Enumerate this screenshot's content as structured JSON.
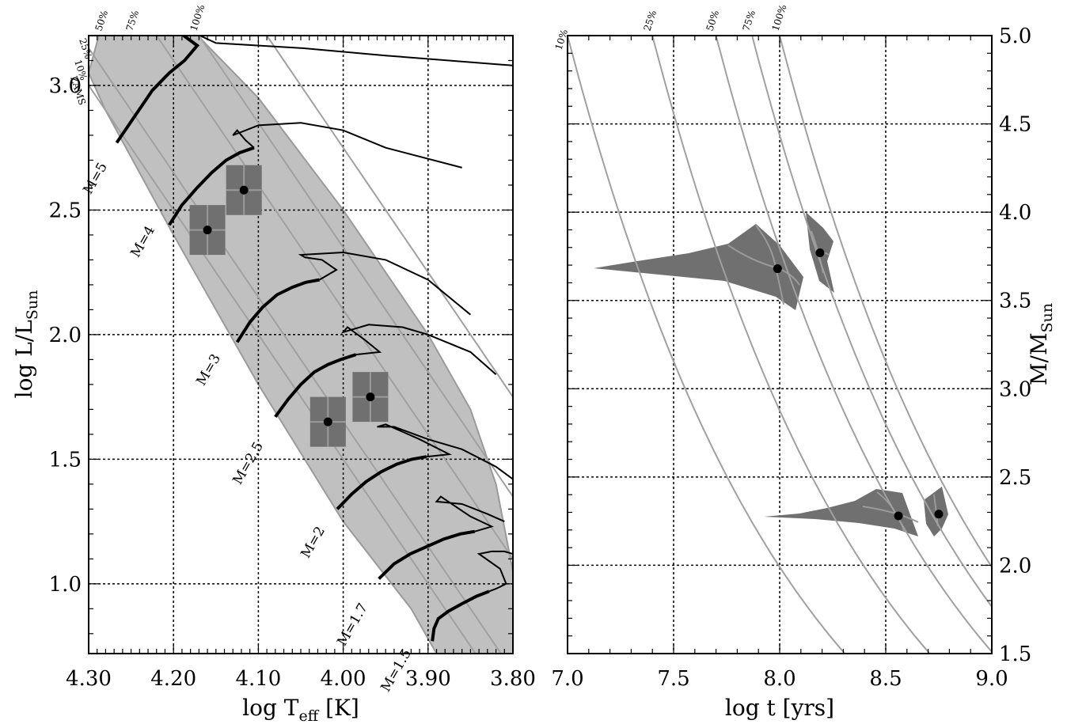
{
  "chart_data": [
    {
      "type": "line",
      "panel": "hr-diagram",
      "xlabel": "log T",
      "xlabel_sub": "eff",
      "xlabel_unit": " [K]",
      "ylabel": "log L/L",
      "ylabel_sub": "Sun",
      "xlim": [
        4.3,
        3.8
      ],
      "ylim": [
        0.72,
        3.2
      ],
      "x_ticks": [
        "4.30",
        "4.20",
        "4.10",
        "4.00",
        "3.90",
        "3.80"
      ],
      "y_ticks": [
        "1.0",
        "1.5",
        "2.0",
        "2.5",
        "3.0"
      ],
      "grid": true,
      "top_labels": [
        "50%",
        "75%",
        "100%"
      ],
      "corner_labels": [
        "25%",
        "10%",
        "ZAMS"
      ],
      "tracks": [
        {
          "label": "M=5",
          "points": [
            [
              4.267,
              2.77
            ],
            [
              4.245,
              2.88
            ],
            [
              4.225,
              2.98
            ],
            [
              4.205,
              3.05
            ],
            [
              4.187,
              3.1
            ],
            [
              4.172,
              3.16
            ],
            [
              4.188,
              3.2
            ],
            [
              4.2,
              3.21
            ],
            [
              4.205,
              3.21
            ],
            [
              4.2,
              3.25
            ],
            [
              4.15,
              3.17
            ],
            [
              4.05,
              3.15
            ],
            [
              3.95,
              3.12
            ],
            [
              3.8,
              3.08
            ]
          ]
        },
        {
          "label": "M=4",
          "points": [
            [
              4.205,
              2.44
            ],
            [
              4.19,
              2.52
            ],
            [
              4.172,
              2.59
            ],
            [
              4.155,
              2.65
            ],
            [
              4.138,
              2.7
            ],
            [
              4.122,
              2.73
            ],
            [
              4.105,
              2.75
            ],
            [
              4.115,
              2.78
            ],
            [
              4.125,
              2.82
            ],
            [
              4.13,
              2.8
            ],
            [
              4.1,
              2.84
            ],
            [
              4.05,
              2.85
            ],
            [
              4.0,
              2.82
            ],
            [
              3.95,
              2.75
            ],
            [
              3.86,
              2.67
            ]
          ]
        },
        {
          "label": "M=3",
          "points": [
            [
              4.125,
              1.97
            ],
            [
              4.11,
              2.05
            ],
            [
              4.095,
              2.11
            ],
            [
              4.078,
              2.16
            ],
            [
              4.06,
              2.19
            ],
            [
              4.044,
              2.21
            ],
            [
              4.028,
              2.22
            ],
            [
              4.008,
              2.26
            ],
            [
              4.025,
              2.3
            ],
            [
              4.045,
              2.31
            ],
            [
              4.05,
              2.32
            ],
            [
              4.0,
              2.33
            ],
            [
              3.95,
              2.3
            ],
            [
              3.9,
              2.22
            ],
            [
              3.85,
              2.08
            ]
          ]
        },
        {
          "label": "M=2.5",
          "points": [
            [
              4.08,
              1.67
            ],
            [
              4.065,
              1.74
            ],
            [
              4.05,
              1.8
            ],
            [
              4.034,
              1.85
            ],
            [
              4.018,
              1.88
            ],
            [
              4.003,
              1.9
            ],
            [
              3.985,
              1.92
            ],
            [
              3.957,
              1.93
            ],
            [
              3.975,
              1.98
            ],
            [
              3.995,
              2.03
            ],
            [
              4.0,
              2.01
            ],
            [
              3.97,
              2.04
            ],
            [
              3.93,
              2.03
            ],
            [
              3.9,
              2.0
            ],
            [
              3.85,
              1.93
            ],
            [
              3.82,
              1.84
            ]
          ]
        },
        {
          "label": "M=2",
          "points": [
            [
              4.007,
              1.3
            ],
            [
              3.99,
              1.36
            ],
            [
              3.973,
              1.41
            ],
            [
              3.955,
              1.45
            ],
            [
              3.937,
              1.48
            ],
            [
              3.919,
              1.5
            ],
            [
              3.902,
              1.51
            ],
            [
              3.875,
              1.52
            ],
            [
              3.91,
              1.58
            ],
            [
              3.95,
              1.64
            ],
            [
              3.96,
              1.63
            ],
            [
              3.94,
              1.63
            ],
            [
              3.9,
              1.58
            ],
            [
              3.86,
              1.54
            ],
            [
              3.82,
              1.47
            ],
            [
              3.8,
              1.42
            ]
          ]
        },
        {
          "label": "M=1.7",
          "points": [
            [
              3.958,
              1.02
            ],
            [
              3.94,
              1.08
            ],
            [
              3.921,
              1.12
            ],
            [
              3.901,
              1.15
            ],
            [
              3.881,
              1.18
            ],
            [
              3.862,
              1.2
            ],
            [
              3.845,
              1.21
            ],
            [
              3.825,
              1.23
            ],
            [
              3.85,
              1.27
            ],
            [
              3.885,
              1.35
            ],
            [
              3.89,
              1.33
            ],
            [
              3.86,
              1.32
            ],
            [
              3.83,
              1.28
            ],
            [
              3.81,
              1.25
            ]
          ]
        },
        {
          "label": "M=1.5",
          "points": [
            [
              3.895,
              0.77
            ],
            [
              3.893,
              0.82
            ],
            [
              3.888,
              0.86
            ],
            [
              3.876,
              0.89
            ],
            [
              3.86,
              0.92
            ],
            [
              3.843,
              0.95
            ],
            [
              3.828,
              0.97
            ],
            [
              3.82,
              0.98
            ],
            [
              3.808,
              1.0
            ],
            [
              3.815,
              1.06
            ],
            [
              3.84,
              1.12
            ],
            [
              3.825,
              1.13
            ],
            [
              3.81,
              1.13
            ],
            [
              3.8,
              1.12
            ]
          ]
        }
      ],
      "stars": [
        {
          "logT": 4.16,
          "logL": 2.42,
          "dT": 0.021,
          "dL": 0.1
        },
        {
          "logT": 4.117,
          "logL": 2.58,
          "dT": 0.021,
          "dL": 0.1
        },
        {
          "logT": 4.018,
          "logL": 1.65,
          "dT": 0.021,
          "dL": 0.1
        },
        {
          "logT": 3.968,
          "logL": 1.75,
          "dT": 0.021,
          "dL": 0.1
        }
      ]
    },
    {
      "type": "line",
      "panel": "mass-age",
      "xlabel": "log t [yrs]",
      "ylabel": "M/M",
      "ylabel_sub": "Sun",
      "xlim": [
        7.0,
        9.0
      ],
      "ylim": [
        1.5,
        5.0
      ],
      "x_ticks": [
        "7.0",
        "7.5",
        "8.0",
        "8.5",
        "9.0"
      ],
      "y_ticks": [
        "1.5",
        "2.0",
        "2.5",
        "3.0",
        "3.5",
        "4.0",
        "4.5",
        "5.0"
      ],
      "grid": true,
      "isochrone_labels": [
        "10%",
        "25%",
        "50%",
        "75%",
        "100%"
      ],
      "stars": [
        {
          "logt": 7.99,
          "mass": 3.68
        },
        {
          "logt": 8.19,
          "mass": 3.77
        },
        {
          "logt": 8.56,
          "mass": 2.28
        },
        {
          "logt": 8.75,
          "mass": 2.29
        }
      ]
    }
  ]
}
